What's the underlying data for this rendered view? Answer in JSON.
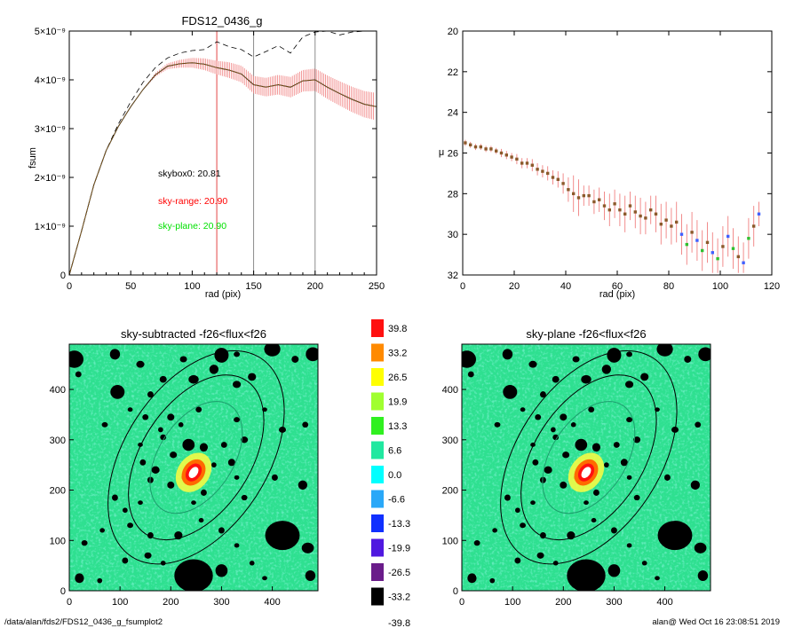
{
  "chart_data": [
    {
      "type": "line",
      "title": "FDS12_0436_g",
      "xlabel": "rad (pix)",
      "ylabel": "fsum",
      "xlim": [
        0,
        250
      ],
      "ylim": [
        0,
        5e-09
      ],
      "xticks": [
        "0",
        "50",
        "100",
        "150",
        "200",
        "250"
      ],
      "yticks": [
        "0",
        "1×10⁻⁹",
        "2×10⁻⁹",
        "3×10⁻⁹",
        "4×10⁻⁹",
        "5×10⁻⁹"
      ],
      "grid": false,
      "vlines": [
        {
          "x": 120,
          "color": "#e03030"
        },
        {
          "x": 150,
          "color": "#808080"
        },
        {
          "x": 200,
          "color": "#808080"
        }
      ],
      "annotations": [
        {
          "text": "skybox0: 20.81",
          "color": "#000000"
        },
        {
          "text": "sky-range: 20.90",
          "color": "#ff0000"
        },
        {
          "text": "sky-plane: 20.90",
          "color": "#00e000"
        }
      ],
      "series": [
        {
          "style": "dashed",
          "color": "#000000",
          "x": [
            0,
            10,
            20,
            30,
            40,
            50,
            60,
            70,
            80,
            90,
            100,
            110,
            120,
            130,
            140,
            150,
            160,
            170,
            180,
            190,
            200,
            210,
            220,
            230,
            240,
            250
          ],
          "y": [
            0,
            9e-10,
            1.85e-09,
            2.55e-09,
            3.1e-09,
            3.55e-09,
            3.95e-09,
            4.25e-09,
            4.45e-09,
            4.55e-09,
            4.6e-09,
            4.62e-09,
            4.78e-09,
            4.68e-09,
            4.62e-09,
            4.47e-09,
            4.58e-09,
            4.7e-09,
            4.55e-09,
            4.88e-09,
            4.98e-09,
            5e-09,
            4.92e-09,
            4.98e-09,
            5e-09,
            5e-09
          ]
        },
        {
          "style": "solid",
          "color": "#000000",
          "error_color": "#f08080",
          "x": [
            0,
            10,
            20,
            30,
            40,
            50,
            60,
            70,
            80,
            90,
            100,
            110,
            120,
            130,
            140,
            150,
            160,
            170,
            180,
            190,
            200,
            210,
            220,
            230,
            240,
            250
          ],
          "y": [
            0,
            9e-10,
            1.85e-09,
            2.55e-09,
            3.05e-09,
            3.45e-09,
            3.8e-09,
            4.1e-09,
            4.28e-09,
            4.33e-09,
            4.35e-09,
            4.32e-09,
            4.25e-09,
            4.2e-09,
            4.12e-09,
            3.9e-09,
            3.85e-09,
            3.9e-09,
            3.85e-09,
            3.98e-09,
            4e-09,
            3.85e-09,
            3.72e-09,
            3.6e-09,
            3.5e-09,
            3.45e-09
          ],
          "err": [
            0,
            0,
            0,
            0,
            0,
            0,
            0,
            4e-11,
            6e-11,
            8e-11,
            1e-10,
            1.2e-10,
            1.4e-10,
            1.6e-10,
            1.7e-10,
            1.8e-10,
            1.9e-10,
            2e-10,
            2.1e-10,
            2.2e-10,
            2.3e-10,
            2.4e-10,
            2.5e-10,
            2.6e-10,
            2.7e-10,
            2.8e-10
          ]
        }
      ]
    },
    {
      "type": "scatter",
      "title": "",
      "xlabel": "rad (pix)",
      "ylabel": "μ",
      "xlim": [
        0,
        120
      ],
      "ylim": [
        32,
        20
      ],
      "xticks": [
        "0",
        "20",
        "40",
        "60",
        "80",
        "100",
        "120"
      ],
      "yticks": [
        "20",
        "22",
        "24",
        "26",
        "28",
        "30",
        "32"
      ],
      "grid": false,
      "series": [
        {
          "color": "#8b5a2b",
          "error_color": "#f08080",
          "x": [
            1,
            3,
            5,
            7,
            9,
            11,
            13,
            15,
            17,
            19,
            21,
            23,
            25,
            27,
            29,
            31,
            33,
            35,
            37,
            39,
            41,
            43,
            45,
            47,
            49,
            51,
            53,
            55,
            57,
            59,
            61,
            63,
            65,
            67,
            69,
            71,
            73,
            75,
            77,
            79,
            81,
            83,
            85,
            87,
            89,
            91,
            93,
            95,
            97,
            99,
            101,
            103,
            105,
            107,
            109,
            111,
            113,
            115
          ],
          "y": [
            25.5,
            25.6,
            25.7,
            25.7,
            25.8,
            25.8,
            25.9,
            26.0,
            26.1,
            26.2,
            26.3,
            26.5,
            26.5,
            26.6,
            26.8,
            26.9,
            27.0,
            27.2,
            27.3,
            27.5,
            27.8,
            28.0,
            28.2,
            28.1,
            28.1,
            28.4,
            28.3,
            28.6,
            28.8,
            28.5,
            28.8,
            29.0,
            28.6,
            28.9,
            29.1,
            29.2,
            28.8,
            29.0,
            29.5,
            29.3,
            29.6,
            29.4,
            30.0,
            30.5,
            29.9,
            30.3,
            30.8,
            30.4,
            30.9,
            31.2,
            30.6,
            30.1,
            30.7,
            31.1,
            31.4,
            30.2,
            29.6,
            29.0
          ],
          "err": [
            0.15,
            0.15,
            0.15,
            0.15,
            0.15,
            0.15,
            0.15,
            0.2,
            0.2,
            0.2,
            0.25,
            0.25,
            0.25,
            0.3,
            0.3,
            0.3,
            0.35,
            0.35,
            0.4,
            0.5,
            0.6,
            0.9,
            0.9,
            0.5,
            0.5,
            0.6,
            0.6,
            0.7,
            0.8,
            0.7,
            0.8,
            0.9,
            0.7,
            0.8,
            0.9,
            0.8,
            0.7,
            0.9,
            1.0,
            0.9,
            0.9,
            1.0,
            1.0,
            1.0,
            1.0,
            1.0,
            1.0,
            1.0,
            1.0,
            1.0,
            1.0,
            1.0,
            1.0,
            1.0,
            1.0,
            1.0,
            1.0,
            0.6
          ]
        }
      ]
    },
    {
      "type": "heatmap",
      "title": "sky-subtracted -f26<flux<f26",
      "xlim": [
        0,
        490
      ],
      "ylim": [
        0,
        490
      ],
      "xticks": [
        "0",
        "100",
        "200",
        "300",
        "400"
      ],
      "yticks": [
        "0",
        "100",
        "200",
        "300",
        "400"
      ]
    },
    {
      "type": "heatmap",
      "title": "sky-plane -f26<flux<f26",
      "xlim": [
        0,
        490
      ],
      "ylim": [
        0,
        490
      ],
      "xticks": [
        "0",
        "100",
        "200",
        "300",
        "400"
      ],
      "yticks": [
        "0",
        "100",
        "200",
        "300",
        "400"
      ]
    }
  ],
  "colorbar": {
    "labels": [
      "39.8",
      "33.2",
      "26.5",
      "19.9",
      "13.3",
      "6.6",
      "0.0",
      "-6.6",
      "-13.3",
      "-19.9",
      "-26.5",
      "-33.2",
      "-39.8"
    ],
    "colors": [
      "#ff1010",
      "#ff8a00",
      "#ffff00",
      "#a0ff30",
      "#30f020",
      "#20e8a0",
      "#00ffff",
      "#2aa8f8",
      "#1030ff",
      "#5018e0",
      "#6a1c8a",
      "#000000"
    ]
  },
  "footer": {
    "left": "/data/alan/fds2/FDS12_0436_g_fsumplot2",
    "right": "alan@  Wed Oct 16 23:08:51 2019"
  },
  "colors": {
    "dashed": "#000000",
    "profile": "#000000",
    "profile_err": "#f08080",
    "sky_range": "#ff0000",
    "sky_plane": "#00e000",
    "field": "#2ee090"
  }
}
